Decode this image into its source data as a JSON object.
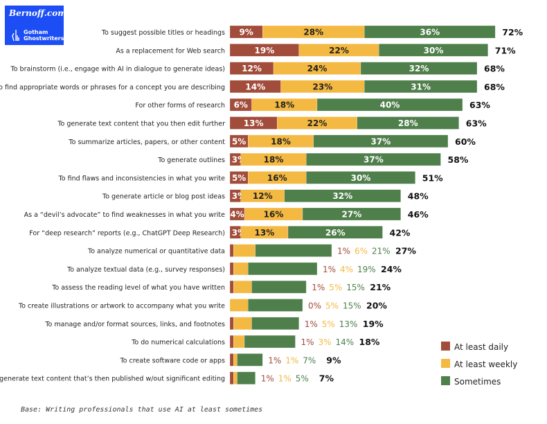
{
  "logo": {
    "site": "Bernoff.com",
    "brand_line1": "Gotham",
    "brand_line2": "Ghostwriters"
  },
  "colors": {
    "daily": "#a24c3b",
    "weekly": "#f4b942",
    "sometimes": "#4f7f4b"
  },
  "chart_data": {
    "type": "bar",
    "orientation": "horizontal",
    "stacked": true,
    "categories": [
      "To suggest possible titles or headings",
      "As a replacement for Web search",
      "To brainstorm (i.e., engage with AI in dialogue to generate ideas)",
      "To find appropriate words or phrases for a concept you are describing",
      "For other forms of research",
      "To generate text content that you then edit further",
      "To summarize articles, papers, or other content",
      "To generate outlines",
      "To find flaws and inconsistencies in what you write",
      "To generate article or blog post ideas",
      "As a “devil’s advocate” to find weaknesses in what you write",
      "For “deep research” reports (e.g., ChatGPT Deep Research)",
      "To analyze numerical or quantitative data",
      "To analyze textual data (e.g., survey responses)",
      "To assess the reading level of what you have written",
      "To create illustrations or artwork to accompany what you write",
      "To manage and/or format sources, links, and footnotes",
      "To do numerical calculations",
      "To create software code or apps",
      "To generate text content that’s then published w/out significant editing"
    ],
    "series": [
      {
        "name": "At least daily",
        "values": [
          9,
          19,
          12,
          14,
          6,
          13,
          5,
          3,
          5,
          3,
          4,
          3,
          1,
          1,
          1,
          0,
          1,
          1,
          1,
          1
        ]
      },
      {
        "name": "At least weekly",
        "values": [
          28,
          22,
          24,
          23,
          18,
          22,
          18,
          18,
          16,
          12,
          16,
          13,
          6,
          4,
          5,
          5,
          5,
          3,
          1,
          1
        ]
      },
      {
        "name": "Sometimes",
        "values": [
          36,
          30,
          32,
          31,
          40,
          28,
          37,
          37,
          30,
          32,
          27,
          26,
          21,
          19,
          15,
          15,
          13,
          14,
          7,
          5
        ]
      }
    ],
    "totals": [
      72,
      71,
      68,
      68,
      63,
      63,
      60,
      58,
      51,
      48,
      46,
      42,
      27,
      24,
      21,
      20,
      19,
      18,
      9,
      7
    ],
    "legend_position": "bottom-right",
    "grid": false
  },
  "footer": "Base: Writing professionals that use AI at least sometimes"
}
